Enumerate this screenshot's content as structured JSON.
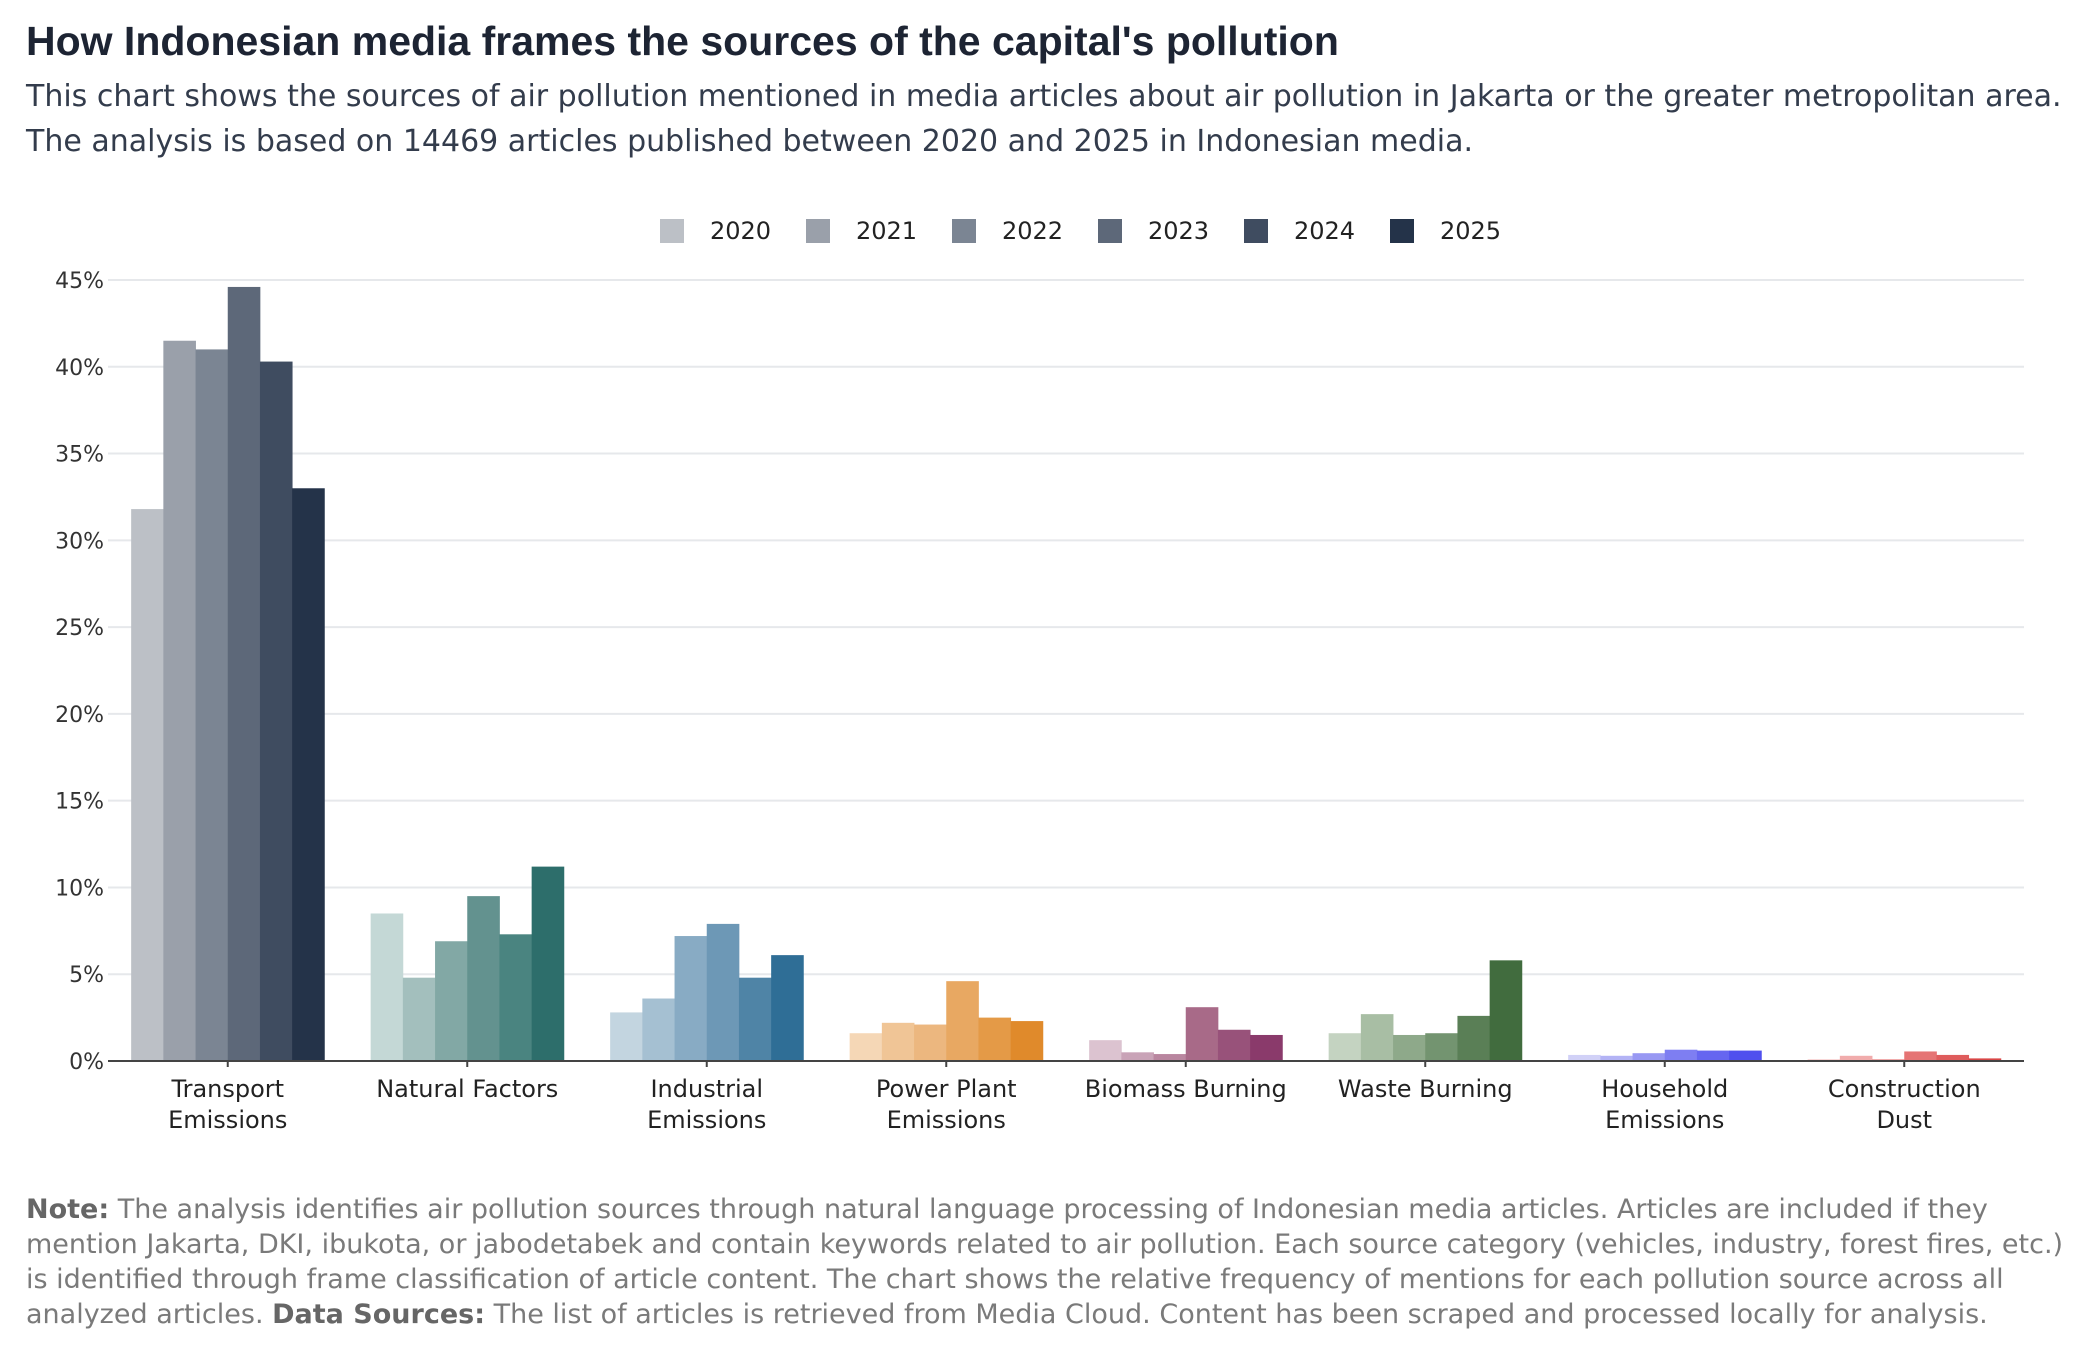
{
  "title": "How Indonesian media frames the sources of the capital's pollution",
  "subtitle": {
    "line1": "This chart shows the sources of air pollution mentioned in media articles about air pollution in Jakarta or the greater metropolitan area.",
    "line2": "The analysis is based on 14469 articles published between 2020 and 2025 in Indonesian media."
  },
  "note": {
    "note_label": "Note:",
    "note_text": " The analysis identifies air pollution sources through natural language processing of Indonesian media articles. Articles are included if they mention Jakarta, DKI, ibukota, or jabodetabek and contain keywords related to air pollution. Each source category (vehicles, industry, forest fires, etc.) is identified through frame classification of article content. The chart shows the relative frequency of mentions for each pollution source across all analyzed articles. ",
    "sources_label": "Data Sources:",
    "sources_text": " The list of articles is retrieved from Media Cloud. Content has been scraped and processed locally for analysis."
  },
  "chart_data": {
    "type": "bar",
    "categories": [
      [
        "Transport",
        "Emissions"
      ],
      [
        "Natural Factors"
      ],
      [
        "Industrial",
        "Emissions"
      ],
      [
        "Power Plant",
        "Emissions"
      ],
      [
        "Biomass Burning"
      ],
      [
        "Waste Burning"
      ],
      [
        "Household",
        "Emissions"
      ],
      [
        "Construction",
        "Dust"
      ]
    ],
    "series": [
      {
        "name": "2020",
        "values": [
          31.8,
          8.5,
          2.8,
          1.6,
          1.2,
          1.6,
          0.35,
          0.1
        ]
      },
      {
        "name": "2021",
        "values": [
          41.5,
          4.8,
          3.6,
          2.2,
          0.5,
          2.7,
          0.3,
          0.3
        ]
      },
      {
        "name": "2022",
        "values": [
          41.0,
          6.9,
          7.2,
          2.1,
          0.4,
          1.5,
          0.45,
          0.1
        ]
      },
      {
        "name": "2023",
        "values": [
          44.6,
          9.5,
          7.9,
          4.6,
          3.1,
          1.6,
          0.65,
          0.55
        ]
      },
      {
        "name": "2024",
        "values": [
          40.3,
          7.3,
          4.8,
          2.5,
          1.8,
          2.6,
          0.6,
          0.35
        ]
      },
      {
        "name": "2025",
        "values": [
          33.0,
          11.2,
          6.1,
          2.3,
          1.5,
          5.8,
          0.6,
          0.15
        ]
      }
    ],
    "category_colors": [
      [
        "#bcc0c6",
        "#9aa0aa",
        "#7b8593",
        "#5d6879",
        "#3f4c60",
        "#243349"
      ],
      [
        "#c4d8d6",
        "#a3bfbd",
        "#82a8a5",
        "#63928f",
        "#4a8480",
        "#2d6e6b"
      ],
      [
        "#c3d5e0",
        "#a5c0d2",
        "#88abc4",
        "#6d98b6",
        "#4f84a6",
        "#2f6e96"
      ],
      [
        "#f5d7b6",
        "#f0c596",
        "#ecb77f",
        "#e8a862",
        "#e49a47",
        "#e08a2b"
      ],
      [
        "#dcc3d0",
        "#c9a3b7",
        "#b9869f",
        "#a86a88",
        "#98527a",
        "#8a3a6b"
      ],
      [
        "#c4d3c1",
        "#a8bea4",
        "#8ea98a",
        "#739470",
        "#5a7f56",
        "#416c3e"
      ],
      [
        "#d1d1f7",
        "#b3b3f5",
        "#9898f3",
        "#7e7ef2",
        "#6666f0",
        "#5050ee"
      ],
      [
        "#f7caca",
        "#f1acac",
        "#ec8f8f",
        "#e57474",
        "#df5c5c",
        "#d94646"
      ]
    ],
    "legend_colors": [
      "#bcc0c6",
      "#9aa0aa",
      "#7b8593",
      "#5d6879",
      "#3f4c60",
      "#243349"
    ],
    "y_ticks": [
      "0%",
      "5%",
      "10%",
      "15%",
      "20%",
      "25%",
      "30%",
      "35%",
      "40%",
      "45%"
    ],
    "ylim": [
      0,
      45
    ],
    "legend_position": "top-center",
    "grid": true
  }
}
